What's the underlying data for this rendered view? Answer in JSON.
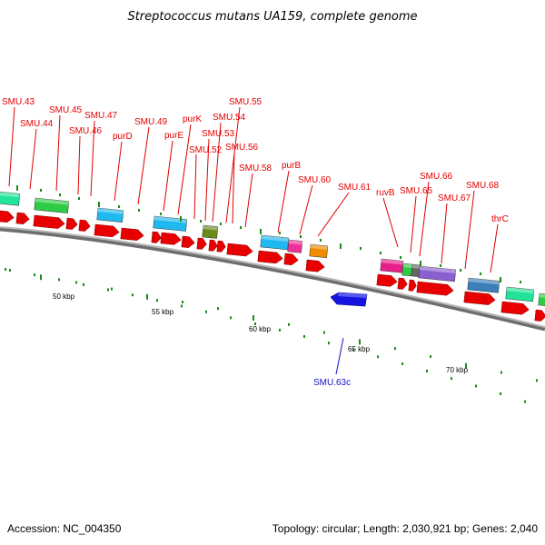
{
  "title": "Streptococcus mutans UA159, complete genome",
  "footer": {
    "accession": "Accession: NC_004350",
    "summary": "Topology: circular; Length: 2,030,921 bp; Genes: 2,040"
  },
  "scale_labels": [
    "50 kbp",
    "55 kbp",
    "60 kbp",
    "65 kbp",
    "70 kbp"
  ],
  "colors": {
    "cds": "#e80000",
    "backbone": "#8a8a8a",
    "tick": "#1a8a1a",
    "minus_strand": "#1414e0",
    "label_plus": "#e30000",
    "label_minus": "#1010c8"
  },
  "gene_labels": [
    {
      "text": "SMU.43",
      "strand": "plus"
    },
    {
      "text": "SMU.44",
      "strand": "plus"
    },
    {
      "text": "SMU.45",
      "strand": "plus"
    },
    {
      "text": "SMU.46",
      "strand": "plus"
    },
    {
      "text": "SMU.47",
      "strand": "plus"
    },
    {
      "text": "purD",
      "strand": "plus"
    },
    {
      "text": "SMU.49",
      "strand": "plus"
    },
    {
      "text": "purE",
      "strand": "plus"
    },
    {
      "text": "purK",
      "strand": "plus"
    },
    {
      "text": "SMU.52",
      "strand": "plus"
    },
    {
      "text": "SMU.53",
      "strand": "plus"
    },
    {
      "text": "SMU.54",
      "strand": "plus"
    },
    {
      "text": "SMU.55",
      "strand": "plus"
    },
    {
      "text": "SMU.56",
      "strand": "plus"
    },
    {
      "text": "SMU.58",
      "strand": "plus"
    },
    {
      "text": "purB",
      "strand": "plus"
    },
    {
      "text": "SMU.60",
      "strand": "plus"
    },
    {
      "text": "SMU.61",
      "strand": "plus"
    },
    {
      "text": "ruvB",
      "strand": "plus"
    },
    {
      "text": "SMU.65",
      "strand": "plus"
    },
    {
      "text": "SMU.66",
      "strand": "plus"
    },
    {
      "text": "SMU.67",
      "strand": "plus"
    },
    {
      "text": "SMU.68",
      "strand": "plus"
    },
    {
      "text": "thrC",
      "strand": "plus"
    },
    {
      "text": "SMU.63c",
      "strand": "minus"
    }
  ]
}
